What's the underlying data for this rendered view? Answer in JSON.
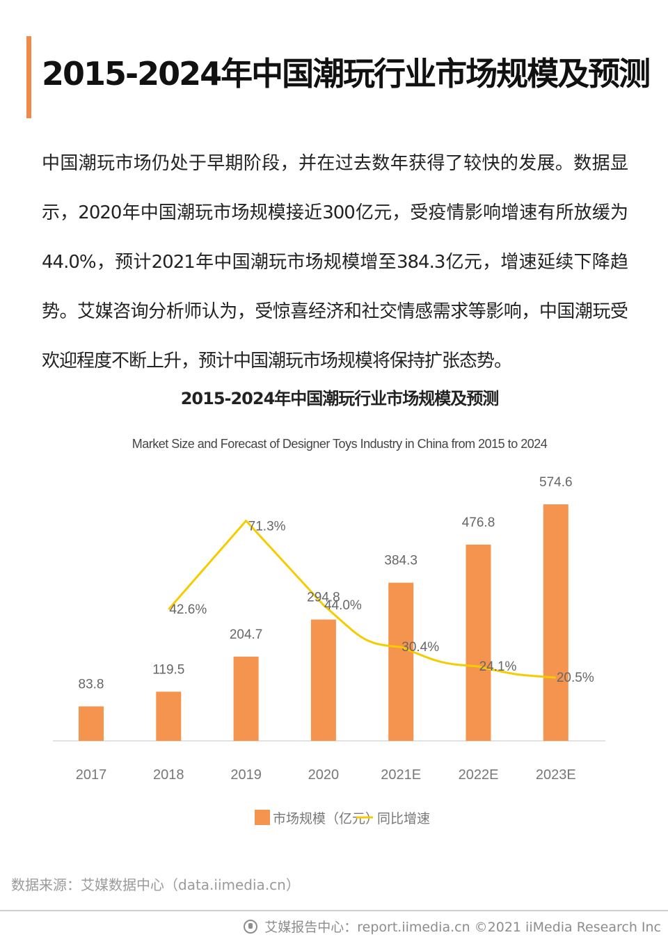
{
  "page": {
    "title": "2015-2024年中国潮玩行业市场规模及预测",
    "paragraph": "中国潮玩市场仍处于早期阶段，并在过去数年获得了较快的发展。数据显示，2020年中国潮玩市场规模接近300亿元，受疫情影响增速有所放缓为44.0%，预计2021年中国潮玩市场规模增至384.3亿元，增速延续下降趋势。艾媒咨询分析师认为，受惊喜经济和社交情感需求等影响，中国潮玩受欢迎程度不断上升，预计中国潮玩市场规模将保持扩张态势。",
    "accent_color": "#f08a4b"
  },
  "chart_data": {
    "type": "bar",
    "title": "2015-2024年中国潮玩行业市场规模及预测",
    "subtitle": "Market Size and Forecast of Designer Toys Industry in China from 2015 to 2024",
    "categories": [
      "2017",
      "2018",
      "2019",
      "2020",
      "2021E",
      "2022E",
      "2023E"
    ],
    "series": [
      {
        "name": "市场规模（亿元）",
        "type": "bar",
        "color": "#f5944e",
        "values": [
          83.8,
          119.5,
          204.7,
          294.8,
          384.3,
          476.8,
          574.6
        ],
        "labels": [
          "83.8",
          "119.5",
          "204.7",
          "294.8",
          "384.3",
          "476.8",
          "574.6"
        ]
      },
      {
        "name": "同比增速",
        "type": "line",
        "color": "#f5cc00",
        "values": [
          null,
          42.6,
          71.3,
          44.0,
          30.4,
          24.1,
          20.5
        ],
        "labels": [
          "",
          "42.6%",
          "71.3%",
          "44.0%",
          "30.4%",
          "24.1%",
          "20.5%"
        ]
      }
    ],
    "y_left_range": [
      0,
      600
    ],
    "y_right_range": [
      0,
      80
    ],
    "grid": false,
    "legend": "bottom-center"
  },
  "source": "数据来源：艾媒数据中心（data.iimedia.cn）",
  "footer": "艾媒报告中心：report.iimedia.cn  ©2021  iiMedia Research  Inc"
}
